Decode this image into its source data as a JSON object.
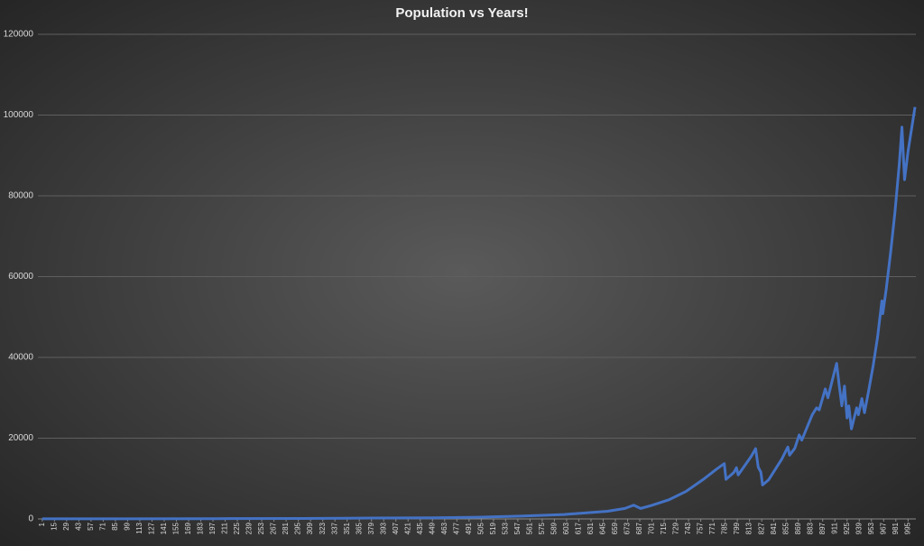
{
  "chart_data": {
    "type": "line",
    "title": "Population vs Years!",
    "x": [
      1,
      100,
      200,
      300,
      380,
      450,
      500,
      550,
      600,
      650,
      670,
      680,
      688,
      700,
      720,
      740,
      760,
      775,
      784,
      786,
      795,
      798,
      800,
      815,
      820,
      823,
      826,
      828,
      835,
      850,
      857,
      859,
      865,
      870,
      873,
      885,
      890,
      893,
      900,
      903,
      910,
      913,
      916,
      919,
      922,
      925,
      927,
      930,
      936,
      938,
      942,
      945,
      950,
      955,
      960,
      965,
      966,
      970,
      975,
      980,
      985,
      988,
      991,
      995,
      1003
    ],
    "values": [
      20,
      40,
      70,
      120,
      220,
      280,
      420,
      700,
      1100,
      1900,
      2600,
      3400,
      2600,
      3300,
      4700,
      6800,
      9800,
      12300,
      13700,
      9800,
      11500,
      12700,
      10900,
      15500,
      17400,
      12800,
      11600,
      8400,
      9700,
      14800,
      17800,
      15800,
      17500,
      20800,
      19500,
      25800,
      27500,
      27000,
      32200,
      30000,
      36000,
      38500,
      33000,
      28000,
      32900,
      25000,
      28000,
      22300,
      27500,
      25800,
      29800,
      26300,
      32000,
      38000,
      45000,
      54000,
      50800,
      57000,
      66000,
      76000,
      88000,
      97000,
      84000,
      91000,
      102000
    ],
    "color": "#4472c4",
    "xlim": [
      -4,
      1004
    ],
    "xticks": [
      1,
      15,
      29,
      43,
      57,
      71,
      85,
      99,
      113,
      127,
      141,
      155,
      169,
      183,
      197,
      211,
      225,
      239,
      253,
      267,
      281,
      295,
      309,
      323,
      337,
      351,
      365,
      379,
      393,
      407,
      421,
      435,
      449,
      463,
      477,
      491,
      505,
      519,
      533,
      547,
      561,
      575,
      589,
      603,
      617,
      631,
      645,
      659,
      673,
      687,
      701,
      715,
      729,
      743,
      757,
      771,
      785,
      799,
      813,
      827,
      841,
      855,
      869,
      883,
      897,
      911,
      925,
      939,
      953,
      967,
      981,
      995
    ],
    "ylim": [
      0,
      120000
    ],
    "yticks": [
      0,
      20000,
      40000,
      60000,
      80000,
      100000,
      120000
    ],
    "grid": true
  }
}
